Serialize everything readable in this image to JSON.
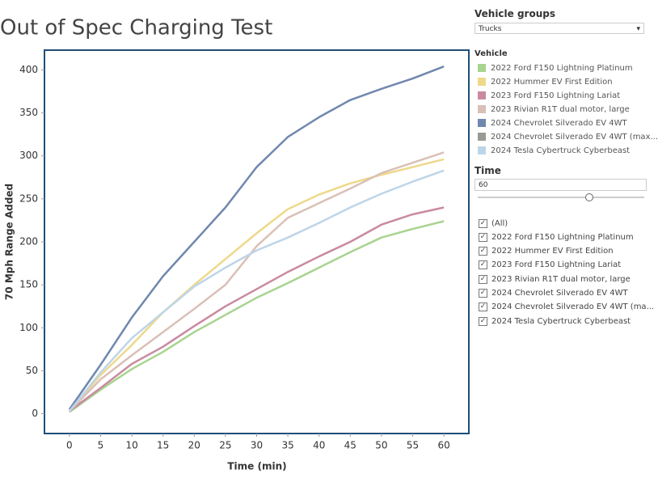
{
  "chart_data": {
    "type": "line",
    "title": "Out of Spec Charging Test",
    "x_label": "Time (min)",
    "y_label": "70 Mph Range Added",
    "x": [
      0,
      5,
      10,
      15,
      20,
      25,
      30,
      35,
      40,
      45,
      50,
      55,
      60
    ],
    "xlim": [
      -4,
      64
    ],
    "xticks": [
      0,
      5,
      10,
      15,
      20,
      25,
      30,
      35,
      40,
      45,
      50,
      55,
      60
    ],
    "ylim": [
      -23,
      423
    ],
    "yticks": [
      0,
      50,
      100,
      150,
      200,
      250,
      300,
      350,
      400
    ],
    "grid": false,
    "legend_title": "Vehicle",
    "series": [
      {
        "name": "2022 Ford F150 Lightning Platinum",
        "color": "#a8d48f",
        "values": [
          2,
          28,
          52,
          72,
          95,
          115,
          135,
          152,
          170,
          188,
          205,
          215,
          224
        ]
      },
      {
        "name": "2022 Hummer EV First Edition",
        "color": "#eed98a",
        "values": [
          3,
          45,
          80,
          118,
          150,
          180,
          210,
          238,
          255,
          268,
          278,
          287,
          296
        ]
      },
      {
        "name": "2023 Ford F150 Lightning Lariat",
        "color": "#c98aa0",
        "values": [
          3,
          30,
          58,
          78,
          102,
          125,
          145,
          165,
          183,
          200,
          220,
          232,
          240
        ]
      },
      {
        "name": "2023 Rivian R1T dual motor, large",
        "color": "#d9c0b7",
        "values": [
          3,
          40,
          68,
          95,
          122,
          150,
          195,
          228,
          245,
          262,
          280,
          292,
          304
        ]
      },
      {
        "name": "2024 Chevrolet Silverado EV 4WT",
        "color": "#7088ae",
        "values": [
          5,
          57,
          112,
          160,
          200,
          240,
          287,
          322,
          345,
          365,
          378,
          390,
          404
        ]
      },
      {
        "name": "2024 Chevrolet Silverado EV 4WT (max...",
        "color": "#9a9a94",
        "values": [
          null,
          null,
          null,
          null,
          null,
          null,
          null,
          null,
          null,
          null,
          null,
          null,
          null
        ]
      },
      {
        "name": "2024 Tesla Cybertruck Cyberbeast",
        "color": "#bed5e8",
        "values": [
          3,
          48,
          88,
          118,
          148,
          170,
          190,
          205,
          222,
          240,
          256,
          270,
          283
        ]
      }
    ]
  },
  "panel": {
    "group_title": "Vehicle groups",
    "group_value": "Trucks",
    "time_title": "Time",
    "time_value": "60",
    "filter_items": [
      "(All)",
      "2022 Ford F150 Lightning Platinum",
      "2022 Hummer EV First Edition",
      "2023 Ford F150 Lightning Lariat",
      "2023 Rivian R1T dual motor, large",
      "2024 Chevrolet Silverado EV 4WT",
      "2024 Chevrolet Silverado EV 4WT (ma...",
      "2024 Tesla Cybertruck Cyberbeast"
    ]
  }
}
